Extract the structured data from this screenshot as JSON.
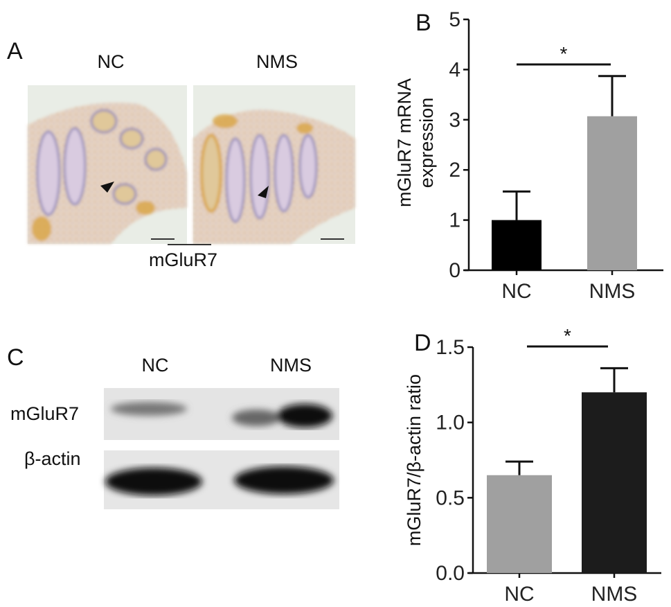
{
  "panel_a": {
    "label": "A",
    "groups": [
      "NC",
      "NMS"
    ],
    "marker": "mGluR7",
    "image_colors": {
      "background": "#e9ede6",
      "stain": "#d9a441",
      "nuclei": "#8f86b8"
    }
  },
  "panel_c": {
    "label": "C",
    "groups": [
      "NC",
      "NMS"
    ],
    "rows": [
      "mGluR7",
      "β-actin"
    ]
  },
  "chart_data": [
    {
      "panel": "B",
      "type": "bar",
      "categories": [
        "NC",
        "NMS"
      ],
      "values": [
        1.0,
        3.07
      ],
      "error_upper": [
        1.57,
        3.87
      ],
      "colors": [
        "#000000",
        "#a0a0a0"
      ],
      "ylabel": "mGluR7 mRNA expression",
      "ylabel_lines": [
        "mGluR7 mRNA",
        "expression"
      ],
      "ylim": [
        0,
        5
      ],
      "yticks": [
        "0",
        "1",
        "2",
        "3",
        "4",
        "5"
      ],
      "significance": "*",
      "grid": false
    },
    {
      "panel": "D",
      "type": "bar",
      "categories": [
        "NC",
        "NMS"
      ],
      "values": [
        0.65,
        1.2
      ],
      "error_upper": [
        0.74,
        1.36
      ],
      "colors": [
        "#a0a0a0",
        "#1c1c1c"
      ],
      "ylabel": "mGluR7/β-actin ratio",
      "ylim": [
        0,
        1.5
      ],
      "yticks": [
        "0.0",
        "0.5",
        "1.0",
        "1.5"
      ],
      "significance": "*",
      "grid": false
    }
  ]
}
